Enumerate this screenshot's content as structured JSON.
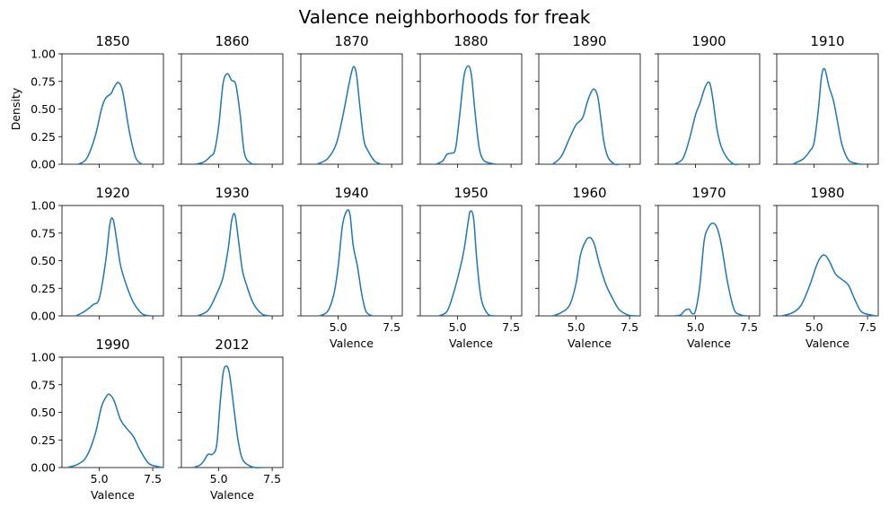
{
  "title": "Valence neighborhoods for freak",
  "chart_data": {
    "type": "line",
    "title": "Valence neighborhoods for freak",
    "xlabel": "Valence",
    "ylabel": "Density",
    "xlim": [
      3.25,
      8.0
    ],
    "ylim": [
      0.0,
      1.0
    ],
    "xticks": [
      5.0,
      7.5
    ],
    "xtick_labels": [
      "5.0",
      "7.5"
    ],
    "yticks": [
      0.0,
      0.25,
      0.5,
      0.75,
      1.0
    ],
    "ytick_labels": [
      "0.00",
      "0.25",
      "0.50",
      "0.75",
      "1.00"
    ],
    "grid": false,
    "color": "#1f77b4",
    "panels": [
      {
        "label": "1850",
        "x": [
          4.0,
          4.4,
          4.8,
          5.1,
          5.3,
          5.55,
          5.7,
          5.9,
          6.1,
          6.4,
          6.7,
          7.0
        ],
        "y": [
          0.0,
          0.05,
          0.25,
          0.5,
          0.6,
          0.64,
          0.7,
          0.74,
          0.65,
          0.3,
          0.06,
          0.0
        ]
      },
      {
        "label": "1860",
        "x": [
          3.9,
          4.3,
          4.6,
          4.8,
          5.0,
          5.2,
          5.4,
          5.6,
          5.8,
          6.0,
          6.2,
          6.5,
          6.8
        ],
        "y": [
          0.0,
          0.02,
          0.07,
          0.12,
          0.35,
          0.73,
          0.82,
          0.76,
          0.72,
          0.45,
          0.1,
          0.01,
          0.0
        ]
      },
      {
        "label": "1870",
        "x": [
          4.0,
          4.5,
          4.9,
          5.2,
          5.5,
          5.7,
          5.85,
          6.0,
          6.2,
          6.4,
          6.7,
          7.0
        ],
        "y": [
          0.0,
          0.05,
          0.18,
          0.42,
          0.72,
          0.88,
          0.82,
          0.55,
          0.22,
          0.12,
          0.03,
          0.0
        ]
      },
      {
        "label": "1880",
        "x": [
          4.0,
          4.3,
          4.5,
          4.7,
          4.9,
          5.1,
          5.3,
          5.5,
          5.65,
          5.8,
          6.0,
          6.2,
          6.5,
          6.8
        ],
        "y": [
          0.0,
          0.03,
          0.09,
          0.1,
          0.14,
          0.45,
          0.8,
          0.89,
          0.8,
          0.5,
          0.16,
          0.04,
          0.01,
          0.0
        ]
      },
      {
        "label": "1890",
        "x": [
          3.9,
          4.3,
          4.7,
          5.0,
          5.3,
          5.55,
          5.8,
          6.0,
          6.15,
          6.3,
          6.5,
          6.8,
          7.0
        ],
        "y": [
          0.0,
          0.07,
          0.24,
          0.36,
          0.42,
          0.58,
          0.68,
          0.62,
          0.42,
          0.2,
          0.06,
          0.0,
          0.0
        ]
      },
      {
        "label": "1900",
        "x": [
          4.0,
          4.4,
          4.7,
          5.0,
          5.2,
          5.45,
          5.65,
          5.8,
          6.0,
          6.2,
          6.5,
          6.8,
          7.0
        ],
        "y": [
          0.0,
          0.05,
          0.22,
          0.45,
          0.55,
          0.7,
          0.74,
          0.6,
          0.32,
          0.16,
          0.05,
          0.0,
          0.0
        ]
      },
      {
        "label": "1910",
        "x": [
          4.0,
          4.5,
          4.8,
          5.0,
          5.2,
          5.35,
          5.5,
          5.7,
          5.9,
          6.1,
          6.3,
          6.6,
          6.9,
          7.2
        ],
        "y": [
          0.0,
          0.05,
          0.12,
          0.2,
          0.5,
          0.8,
          0.86,
          0.7,
          0.58,
          0.38,
          0.18,
          0.04,
          0.01,
          0.0
        ]
      },
      {
        "label": "1920",
        "x": [
          3.9,
          4.3,
          4.7,
          5.0,
          5.3,
          5.5,
          5.65,
          5.8,
          6.0,
          6.3,
          6.6,
          7.0,
          7.4
        ],
        "y": [
          0.0,
          0.04,
          0.1,
          0.16,
          0.5,
          0.84,
          0.87,
          0.7,
          0.45,
          0.26,
          0.12,
          0.02,
          0.0
        ]
      },
      {
        "label": "1930",
        "x": [
          4.0,
          4.5,
          4.9,
          5.2,
          5.45,
          5.6,
          5.75,
          5.9,
          6.1,
          6.3,
          6.6,
          7.0,
          7.4
        ],
        "y": [
          0.0,
          0.05,
          0.2,
          0.35,
          0.62,
          0.86,
          0.92,
          0.72,
          0.42,
          0.28,
          0.12,
          0.02,
          0.0
        ]
      },
      {
        "label": "1940",
        "x": [
          4.1,
          4.5,
          4.8,
          5.0,
          5.2,
          5.4,
          5.55,
          5.7,
          5.9,
          6.1,
          6.3,
          6.6
        ],
        "y": [
          0.0,
          0.04,
          0.2,
          0.45,
          0.82,
          0.95,
          0.92,
          0.64,
          0.45,
          0.2,
          0.04,
          0.0
        ]
      },
      {
        "label": "1950",
        "x": [
          4.1,
          4.5,
          4.8,
          5.1,
          5.3,
          5.5,
          5.6,
          5.75,
          5.9,
          6.1,
          6.4,
          6.7
        ],
        "y": [
          0.0,
          0.04,
          0.2,
          0.42,
          0.6,
          0.86,
          0.95,
          0.88,
          0.5,
          0.16,
          0.02,
          0.0
        ]
      },
      {
        "label": "1960",
        "x": [
          3.9,
          4.3,
          4.7,
          5.0,
          5.2,
          5.45,
          5.65,
          5.85,
          6.1,
          6.4,
          6.7,
          7.0,
          7.4,
          7.8
        ],
        "y": [
          0.0,
          0.03,
          0.1,
          0.3,
          0.55,
          0.68,
          0.71,
          0.65,
          0.46,
          0.28,
          0.16,
          0.06,
          0.01,
          0.0
        ]
      },
      {
        "label": "1970",
        "x": [
          4.0,
          4.3,
          4.5,
          4.7,
          4.85,
          5.0,
          5.2,
          5.4,
          5.6,
          5.8,
          6.0,
          6.2,
          6.5,
          6.8,
          7.1,
          7.4
        ],
        "y": [
          0.0,
          0.01,
          0.05,
          0.06,
          0.02,
          0.05,
          0.28,
          0.68,
          0.8,
          0.84,
          0.8,
          0.65,
          0.3,
          0.06,
          0.01,
          0.0
        ]
      },
      {
        "label": "1980",
        "x": [
          3.5,
          4.0,
          4.4,
          4.8,
          5.1,
          5.3,
          5.5,
          5.7,
          6.0,
          6.3,
          6.6,
          6.9,
          7.2,
          7.6,
          7.9
        ],
        "y": [
          0.0,
          0.03,
          0.1,
          0.28,
          0.45,
          0.53,
          0.55,
          0.5,
          0.38,
          0.33,
          0.28,
          0.15,
          0.04,
          0.01,
          0.0
        ]
      },
      {
        "label": "1990",
        "x": [
          3.5,
          4.0,
          4.4,
          4.8,
          5.1,
          5.35,
          5.5,
          5.7,
          6.0,
          6.3,
          6.6,
          6.9,
          7.3,
          7.7,
          8.0
        ],
        "y": [
          0.0,
          0.03,
          0.1,
          0.3,
          0.55,
          0.65,
          0.66,
          0.6,
          0.43,
          0.35,
          0.28,
          0.16,
          0.04,
          0.01,
          0.0
        ]
      },
      {
        "label": "2012",
        "x": [
          3.8,
          4.1,
          4.3,
          4.5,
          4.7,
          4.9,
          5.05,
          5.2,
          5.35,
          5.5,
          5.7,
          5.9,
          6.1,
          6.4,
          6.7,
          7.0
        ],
        "y": [
          0.0,
          0.02,
          0.06,
          0.12,
          0.12,
          0.2,
          0.55,
          0.85,
          0.92,
          0.85,
          0.55,
          0.25,
          0.08,
          0.02,
          0.0,
          0.0
        ]
      }
    ]
  }
}
